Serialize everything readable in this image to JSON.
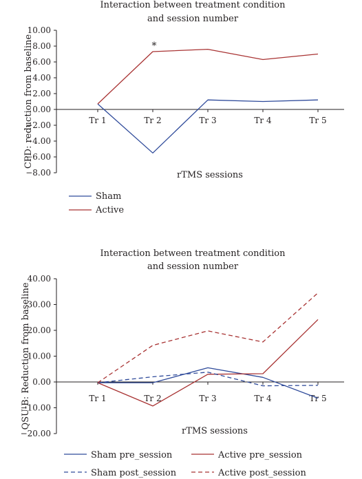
{
  "chart_data": [
    {
      "type": "line",
      "title_lines": [
        "Interaction between treatment condition",
        "and session number"
      ],
      "xlabel": "rTMS sessions",
      "ylabel": "CPD: reduction from baseline",
      "categories": [
        "Tr 1",
        "Tr 2",
        "Tr 3",
        "Tr 4",
        "Tr 5"
      ],
      "ylim": [
        -8,
        10
      ],
      "yticks": [
        "10.00",
        "8.00",
        "6.00",
        "4.00",
        "2.00",
        "0.00",
        "−2.00",
        "−4.00",
        "−6.00",
        "−8.00"
      ],
      "yticks_values": [
        10,
        8,
        6,
        4,
        2,
        0,
        -2,
        -4,
        -6,
        -8
      ],
      "grid": false,
      "legend_position": "bottom-left",
      "annotation": "*",
      "annotation_category": "Tr 2",
      "series": [
        {
          "name": "Sham",
          "values": [
            0.7,
            -5.5,
            1.2,
            1.0,
            1.2
          ],
          "color": "#2e4a9a",
          "dash": "solid"
        },
        {
          "name": "Active",
          "values": [
            0.7,
            7.3,
            7.6,
            6.3,
            7.0
          ],
          "color": "#a83232",
          "dash": "solid"
        }
      ]
    },
    {
      "type": "line",
      "title_lines": [
        "Interaction between treatment condition",
        "and session number"
      ],
      "xlabel": "rTMS sessions",
      "ylabel": "QSU-B: Reduction from baseline",
      "categories": [
        "Tr 1",
        "Tr 2",
        "Tr 3",
        "Tr 4",
        "Tr 5"
      ],
      "ylim": [
        -20,
        40
      ],
      "yticks": [
        "40.00",
        "30.00",
        "20.00",
        "10.00",
        "0.00",
        "−10.00",
        "−20.00"
      ],
      "yticks_values": [
        40,
        30,
        20,
        10,
        0,
        -10,
        -20
      ],
      "grid": false,
      "legend_position": "bottom",
      "series": [
        {
          "name": "Sham pre_session",
          "values": [
            -0.3,
            -0.3,
            5.5,
            1.8,
            -6.3
          ],
          "color": "#2e4a9a",
          "dash": "solid"
        },
        {
          "name": "Active pre_session",
          "values": [
            -0.3,
            -9.3,
            3.0,
            3.2,
            24.2
          ],
          "color": "#a83232",
          "dash": "solid"
        },
        {
          "name": "Sham post_session",
          "values": [
            -0.3,
            2.0,
            3.8,
            -1.5,
            -1.3
          ],
          "color": "#2e4a9a",
          "dash": "dashed"
        },
        {
          "name": "Active post_session",
          "values": [
            -0.3,
            14.2,
            19.8,
            15.5,
            34.5
          ],
          "color": "#a83232",
          "dash": "dashed"
        }
      ]
    }
  ]
}
